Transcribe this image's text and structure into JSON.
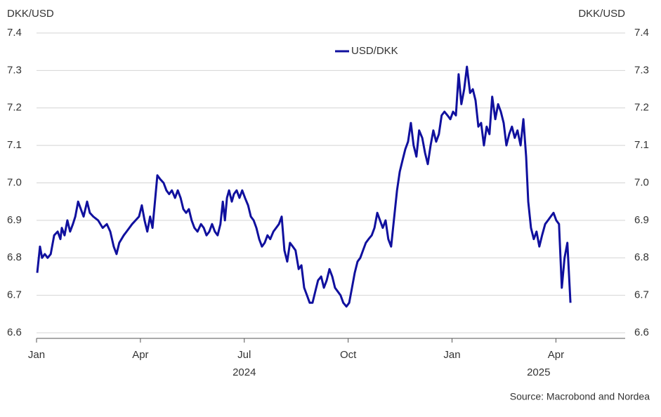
{
  "chart_data": {
    "type": "line",
    "y_label": "DKK/USD",
    "y2_label": "DKK/USD",
    "source": "Source: Macrobond and Nordea",
    "legend": "top-center",
    "grid": true,
    "xlim": [
      0,
      17
    ],
    "xticks": [
      {
        "value": 0,
        "label": "Jan"
      },
      {
        "value": 3,
        "label": "Apr"
      },
      {
        "value": 6,
        "label": "Jul"
      },
      {
        "value": 9,
        "label": "Oct"
      },
      {
        "value": 12,
        "label": "Jan"
      },
      {
        "value": 15,
        "label": "Apr"
      }
    ],
    "years": [
      "2024",
      "2025"
    ],
    "ylim": [
      6.6,
      7.4
    ],
    "yticks": [
      6.6,
      6.7,
      6.8,
      6.9,
      {
        "value": 7,
        "label": "7.0"
      },
      7.1,
      7.2,
      7.3,
      7.4
    ],
    "y2lim": [
      6.6,
      7.4
    ],
    "y2ticks": [
      6.6,
      6.7,
      6.8,
      6.9,
      {
        "value": 7,
        "label": "7.0"
      },
      7.1,
      7.2,
      7.3,
      7.4
    ],
    "x": [
      0.02,
      0.1,
      0.16,
      0.24,
      0.32,
      0.41,
      0.51,
      0.61,
      0.69,
      0.73,
      0.81,
      0.89,
      0.97,
      1.05,
      1.12,
      1.2,
      1.28,
      1.36,
      1.46,
      1.54,
      1.64,
      1.78,
      1.91,
      2.03,
      2.13,
      2.23,
      2.31,
      2.39,
      2.52,
      2.6,
      2.68,
      2.76,
      2.86,
      2.96,
      3.04,
      3.12,
      3.2,
      3.28,
      3.35,
      3.41,
      3.49,
      3.57,
      3.67,
      3.75,
      3.83,
      3.91,
      4.0,
      4.08,
      4.16,
      4.24,
      4.32,
      4.4,
      4.48,
      4.56,
      4.65,
      4.75,
      4.83,
      4.91,
      4.99,
      5.07,
      5.15,
      5.23,
      5.31,
      5.38,
      5.44,
      5.5,
      5.56,
      5.64,
      5.7,
      5.78,
      5.86,
      5.94,
      6.02,
      6.11,
      6.19,
      6.27,
      6.35,
      6.43,
      6.51,
      6.59,
      6.67,
      6.75,
      6.84,
      6.92,
      7.0,
      7.08,
      7.16,
      7.24,
      7.32,
      7.4,
      7.48,
      7.57,
      7.65,
      7.73,
      7.81,
      7.89,
      7.97,
      8.05,
      8.13,
      8.22,
      8.3,
      8.38,
      8.46,
      8.54,
      8.62,
      8.7,
      8.78,
      8.86,
      8.95,
      9.03,
      9.11,
      9.19,
      9.27,
      9.35,
      9.43,
      9.51,
      9.59,
      9.68,
      9.76,
      9.84,
      9.92,
      10.0,
      10.08,
      10.16,
      10.24,
      10.32,
      10.41,
      10.49,
      10.57,
      10.65,
      10.73,
      10.81,
      10.89,
      10.97,
      11.05,
      11.14,
      11.22,
      11.3,
      11.38,
      11.46,
      11.54,
      11.62,
      11.7,
      11.78,
      11.87,
      11.95,
      12.03,
      12.11,
      12.19,
      12.27,
      12.35,
      12.43,
      12.52,
      12.6,
      12.68,
      12.76,
      12.84,
      12.92,
      13.0,
      13.08,
      13.16,
      13.25,
      13.33,
      13.41,
      13.49,
      13.57,
      13.65,
      13.73,
      13.81,
      13.89,
      13.98,
      14.06,
      14.14,
      14.2,
      14.28,
      14.36,
      14.44,
      14.52,
      14.6,
      14.69,
      14.77,
      14.85,
      14.93,
      15.01,
      15.09,
      15.17,
      15.25,
      15.33,
      15.42
    ],
    "series": [
      {
        "name": "USD/DKK",
        "color": "#10109e",
        "values": [
          6.76,
          6.83,
          6.8,
          6.81,
          6.8,
          6.81,
          6.86,
          6.87,
          6.85,
          6.88,
          6.86,
          6.9,
          6.87,
          6.89,
          6.91,
          6.95,
          6.93,
          6.91,
          6.95,
          6.92,
          6.91,
          6.9,
          6.88,
          6.89,
          6.87,
          6.83,
          6.81,
          6.84,
          6.86,
          6.87,
          6.88,
          6.89,
          6.9,
          6.91,
          6.94,
          6.9,
          6.87,
          6.91,
          6.88,
          6.94,
          7.02,
          7.01,
          7.0,
          6.98,
          6.97,
          6.98,
          6.96,
          6.98,
          6.96,
          6.93,
          6.92,
          6.93,
          6.9,
          6.88,
          6.87,
          6.89,
          6.88,
          6.86,
          6.87,
          6.89,
          6.87,
          6.86,
          6.89,
          6.95,
          6.9,
          6.96,
          6.98,
          6.95,
          6.97,
          6.98,
          6.96,
          6.98,
          6.96,
          6.94,
          6.91,
          6.9,
          6.88,
          6.85,
          6.83,
          6.84,
          6.86,
          6.85,
          6.87,
          6.88,
          6.89,
          6.91,
          6.82,
          6.79,
          6.84,
          6.83,
          6.82,
          6.77,
          6.78,
          6.72,
          6.7,
          6.68,
          6.68,
          6.71,
          6.74,
          6.75,
          6.72,
          6.74,
          6.77,
          6.75,
          6.72,
          6.71,
          6.7,
          6.68,
          6.67,
          6.68,
          6.72,
          6.76,
          6.79,
          6.8,
          6.82,
          6.84,
          6.85,
          6.86,
          6.88,
          6.92,
          6.9,
          6.88,
          6.9,
          6.85,
          6.83,
          6.9,
          6.98,
          7.03,
          7.06,
          7.09,
          7.11,
          7.16,
          7.1,
          7.07,
          7.14,
          7.12,
          7.08,
          7.05,
          7.1,
          7.14,
          7.11,
          7.13,
          7.18,
          7.19,
          7.18,
          7.17,
          7.19,
          7.18,
          7.29,
          7.21,
          7.25,
          7.31,
          7.24,
          7.25,
          7.22,
          7.15,
          7.16,
          7.1,
          7.15,
          7.13,
          7.23,
          7.17,
          7.21,
          7.19,
          7.16,
          7.1,
          7.13,
          7.15,
          7.12,
          7.14,
          7.1,
          7.17,
          7.07,
          6.95,
          6.88,
          6.85,
          6.87,
          6.83,
          6.86,
          6.89,
          6.9,
          6.91,
          6.92,
          6.9,
          6.89,
          6.72,
          6.8,
          6.84,
          6.68
        ]
      }
    ]
  }
}
